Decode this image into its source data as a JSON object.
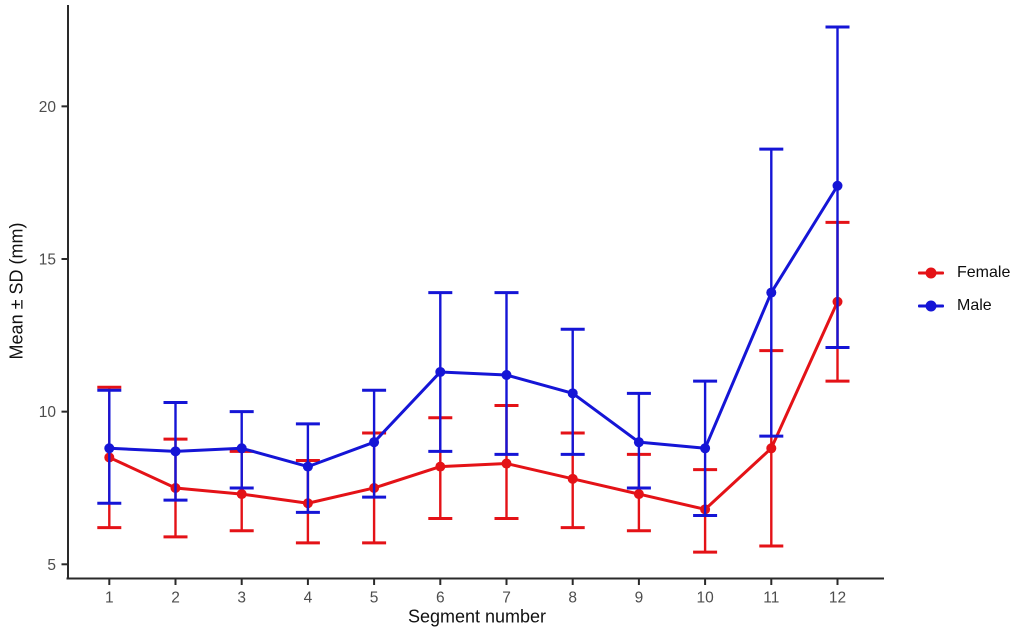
{
  "chart_data": {
    "type": "line",
    "title": "",
    "xlabel": "Segment number",
    "ylabel": "Mean ± SD (mm)",
    "x": [
      1,
      2,
      3,
      4,
      5,
      6,
      7,
      8,
      9,
      10,
      11,
      12
    ],
    "x_tick_labels": [
      "1",
      "2",
      "3",
      "4",
      "5",
      "6",
      "7",
      "8",
      "9",
      "10",
      "11",
      "12"
    ],
    "y_ticks": [
      5,
      10,
      15,
      20
    ],
    "ylim": [
      4.5,
      23.3
    ],
    "grid": false,
    "legend_position": "right-center",
    "marker": "circle",
    "error_bar_style": "vertical line with end caps",
    "series": [
      {
        "name": "Female",
        "color": "#e41217",
        "means": [
          8.5,
          7.5,
          7.3,
          7.0,
          7.5,
          8.2,
          8.3,
          7.8,
          7.3,
          6.8,
          8.8,
          13.6
        ],
        "upper": [
          10.8,
          9.1,
          8.7,
          8.4,
          9.3,
          9.8,
          10.2,
          9.3,
          8.6,
          8.1,
          12.0,
          16.2
        ],
        "lower": [
          6.2,
          5.9,
          6.1,
          5.7,
          5.7,
          6.5,
          6.5,
          6.2,
          6.1,
          5.4,
          5.6,
          11.0
        ]
      },
      {
        "name": "Male",
        "color": "#1515d6",
        "means": [
          8.8,
          8.7,
          8.8,
          8.2,
          9.0,
          11.3,
          11.2,
          10.6,
          9.0,
          8.8,
          13.9,
          17.4
        ],
        "upper": [
          10.7,
          10.3,
          10.0,
          9.6,
          10.7,
          13.9,
          13.9,
          12.7,
          10.6,
          11.0,
          18.6,
          22.6
        ],
        "lower": [
          7.0,
          7.1,
          7.5,
          6.7,
          7.2,
          8.7,
          8.6,
          8.6,
          7.5,
          6.6,
          9.2,
          12.1
        ]
      }
    ]
  },
  "colors": {
    "background": "#ffffff",
    "axis_line": "#2a2a2a",
    "tick_label": "#4d4d4d",
    "axis_title": "#111111",
    "female": "#e41217",
    "male": "#1515d6"
  }
}
